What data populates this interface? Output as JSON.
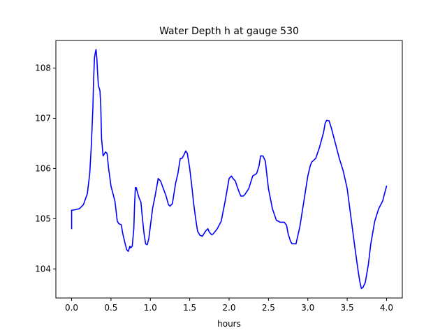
{
  "chart_data": {
    "type": "line",
    "title": "Water Depth h at gauge 530",
    "xlabel": "hours",
    "ylabel": "",
    "xlim": [
      -0.2,
      4.2
    ],
    "ylim": [
      103.42,
      108.55
    ],
    "xticks": [
      0.0,
      0.5,
      1.0,
      1.5,
      2.0,
      2.5,
      3.0,
      3.5,
      4.0
    ],
    "xtick_labels": [
      "0.0",
      "0.5",
      "1.0",
      "1.5",
      "2.0",
      "2.5",
      "3.0",
      "3.5",
      "4.0"
    ],
    "yticks": [
      104,
      105,
      106,
      107,
      108
    ],
    "ytick_labels": [
      "104",
      "105",
      "106",
      "107",
      "108"
    ],
    "grid": false,
    "series": [
      {
        "color": "#0000ff",
        "x": [
          0.0,
          0.0,
          0.01,
          0.05,
          0.1,
          0.15,
          0.2,
          0.23,
          0.25,
          0.27,
          0.28,
          0.29,
          0.3,
          0.31,
          0.32,
          0.33,
          0.34,
          0.36,
          0.37,
          0.38,
          0.4,
          0.43,
          0.45,
          0.47,
          0.5,
          0.55,
          0.58,
          0.6,
          0.63,
          0.65,
          0.68,
          0.7,
          0.72,
          0.74,
          0.75,
          0.77,
          0.79,
          0.8,
          0.81,
          0.82,
          0.84,
          0.86,
          0.88,
          0.9,
          0.92,
          0.94,
          0.96,
          0.98,
          1.0,
          1.03,
          1.06,
          1.1,
          1.13,
          1.16,
          1.2,
          1.23,
          1.25,
          1.28,
          1.32,
          1.35,
          1.38,
          1.4,
          1.42,
          1.45,
          1.47,
          1.5,
          1.53,
          1.55,
          1.58,
          1.6,
          1.63,
          1.66,
          1.7,
          1.73,
          1.75,
          1.78,
          1.8,
          1.85,
          1.9,
          1.95,
          2.0,
          2.03,
          2.05,
          2.08,
          2.1,
          2.13,
          2.15,
          2.18,
          2.2,
          2.25,
          2.3,
          2.35,
          2.38,
          2.4,
          2.43,
          2.46,
          2.5,
          2.55,
          2.6,
          2.65,
          2.7,
          2.73,
          2.75,
          2.78,
          2.8,
          2.85,
          2.9,
          2.95,
          3.0,
          3.03,
          3.05,
          3.1,
          3.15,
          3.2,
          3.22,
          3.24,
          3.27,
          3.3,
          3.35,
          3.4,
          3.45,
          3.5,
          3.55,
          3.6,
          3.64,
          3.66,
          3.68,
          3.7,
          3.73,
          3.77,
          3.8,
          3.85,
          3.9,
          3.95,
          4.0
        ],
        "y": [
          104.8,
          105.17,
          105.17,
          105.18,
          105.2,
          105.28,
          105.5,
          105.9,
          106.45,
          107.2,
          107.8,
          108.2,
          108.3,
          108.37,
          108.2,
          107.9,
          107.65,
          107.55,
          107.25,
          106.6,
          106.25,
          106.33,
          106.3,
          106.0,
          105.65,
          105.35,
          104.95,
          104.9,
          104.88,
          104.7,
          104.5,
          104.38,
          104.35,
          104.45,
          104.42,
          104.45,
          104.8,
          105.3,
          105.62,
          105.62,
          105.5,
          105.4,
          105.33,
          105.0,
          104.7,
          104.5,
          104.48,
          104.6,
          104.85,
          105.22,
          105.45,
          105.8,
          105.75,
          105.62,
          105.45,
          105.28,
          105.25,
          105.3,
          105.7,
          105.9,
          106.2,
          106.2,
          106.25,
          106.35,
          106.3,
          106.0,
          105.6,
          105.3,
          104.95,
          104.75,
          104.67,
          104.65,
          104.75,
          104.8,
          104.73,
          104.68,
          104.7,
          104.8,
          104.95,
          105.35,
          105.8,
          105.85,
          105.8,
          105.75,
          105.65,
          105.52,
          105.45,
          105.45,
          105.48,
          105.6,
          105.85,
          105.9,
          106.05,
          106.25,
          106.25,
          106.15,
          105.6,
          105.2,
          104.97,
          104.93,
          104.93,
          104.87,
          104.7,
          104.55,
          104.5,
          104.5,
          104.85,
          105.35,
          105.85,
          106.05,
          106.13,
          106.2,
          106.43,
          106.72,
          106.9,
          106.96,
          106.95,
          106.8,
          106.5,
          106.2,
          105.95,
          105.6,
          105.0,
          104.4,
          103.95,
          103.75,
          103.61,
          103.63,
          103.73,
          104.1,
          104.5,
          104.95,
          105.2,
          105.35,
          105.65
        ]
      }
    ]
  }
}
